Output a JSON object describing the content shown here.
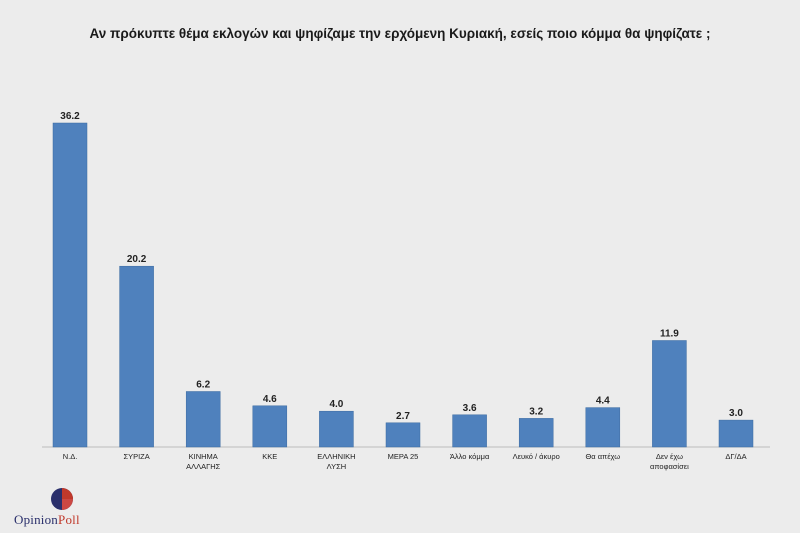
{
  "chart_data": {
    "type": "bar",
    "title": "Αν πρόκυπτε θέμα εκλογών και ψηφίζαμε την ερχόμενη Κυριακή, εσείς ποιο κόμμα θα ψηφίζατε ;",
    "categories": [
      "Ν.Δ.",
      "ΣΥΡΙΖΑ",
      "ΚΙΝΗΜΑ ΑΛΛΑΓΗΣ",
      "ΚΚΕ",
      "ΕΛΛΗΝΙΚΗ ΛΥΣΗ",
      "ΜΕΡΑ 25",
      "Άλλο κόμμα",
      "Λευκό / άκυρο",
      "Θα απέχω",
      "Δεν έχω αποφασίσει",
      "ΔΓ/ΔΑ"
    ],
    "category_lines": [
      [
        "Ν.Δ."
      ],
      [
        "ΣΥΡΙΖΑ"
      ],
      [
        "ΚΙΝΗΜΑ",
        "ΑΛΛΑΓΗΣ"
      ],
      [
        "ΚΚΕ"
      ],
      [
        "ΕΛΛΗΝΙΚΗ",
        "ΛΥΣΗ"
      ],
      [
        "ΜΕΡΑ 25"
      ],
      [
        "Άλλο κόμμα"
      ],
      [
        "Λευκό / άκυρο"
      ],
      [
        "Θα απέχω"
      ],
      [
        "Δεν έχω",
        "αποφασίσει"
      ],
      [
        "ΔΓ/ΔΑ"
      ]
    ],
    "values": [
      36.2,
      20.2,
      6.2,
      4.6,
      4.0,
      2.7,
      3.6,
      3.2,
      4.4,
      11.9,
      3.0
    ],
    "value_labels": [
      "36.2",
      "20.2",
      "6.2",
      "4.6",
      "4.0",
      "2.7",
      "3.6",
      "3.2",
      "4.4",
      "11.9",
      "3.0"
    ],
    "ylim": [
      0,
      36.2
    ],
    "grid": false,
    "bar_color": "#4f81bd"
  },
  "logo": {
    "brand_left": "Opinion",
    "brand_right": "Poll",
    "accent_colors": [
      "#2a2f6b",
      "#c0392b"
    ]
  }
}
